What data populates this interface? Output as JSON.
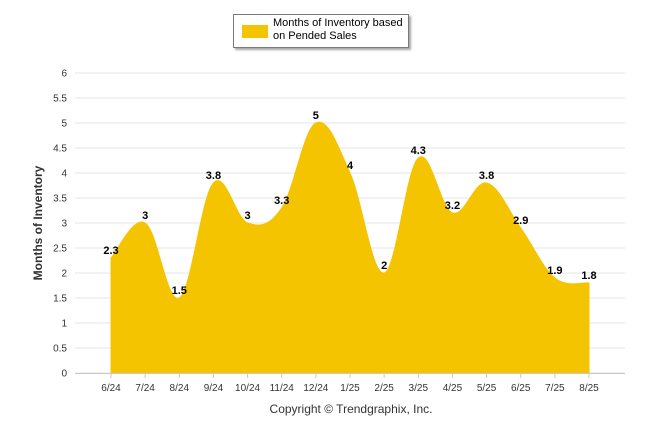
{
  "chart_data": {
    "type": "area",
    "categories": [
      "6/24",
      "7/24",
      "8/24",
      "9/24",
      "10/24",
      "11/24",
      "12/24",
      "1/25",
      "2/25",
      "3/25",
      "4/25",
      "5/25",
      "6/25",
      "7/25",
      "8/25"
    ],
    "series": [
      {
        "name": "Months of Inventory based on Pended Sales",
        "values": [
          2.3,
          3,
          1.5,
          3.8,
          3,
          3.3,
          5,
          4,
          2,
          4.3,
          3.2,
          3.8,
          2.9,
          1.9,
          1.8
        ],
        "labels": [
          "2.3",
          "3",
          "1.5",
          "3.8",
          "3",
          "3.3",
          "5",
          "4",
          "2",
          "4.3",
          "3.2",
          "3.8",
          "2.9",
          "1.9",
          "1.8"
        ]
      }
    ],
    "ylabel": "Months of Inventory",
    "ylim": [
      0,
      6
    ],
    "yticks": [
      "0",
      "0.5",
      "1",
      "1.5",
      "2",
      "2.5",
      "3",
      "3.5",
      "4",
      "4.5",
      "5",
      "5.5",
      "6"
    ],
    "grid": true,
    "legend": "top-center",
    "color": "#f5c400"
  },
  "footer": "Copyright © Trendgraphix, Inc."
}
